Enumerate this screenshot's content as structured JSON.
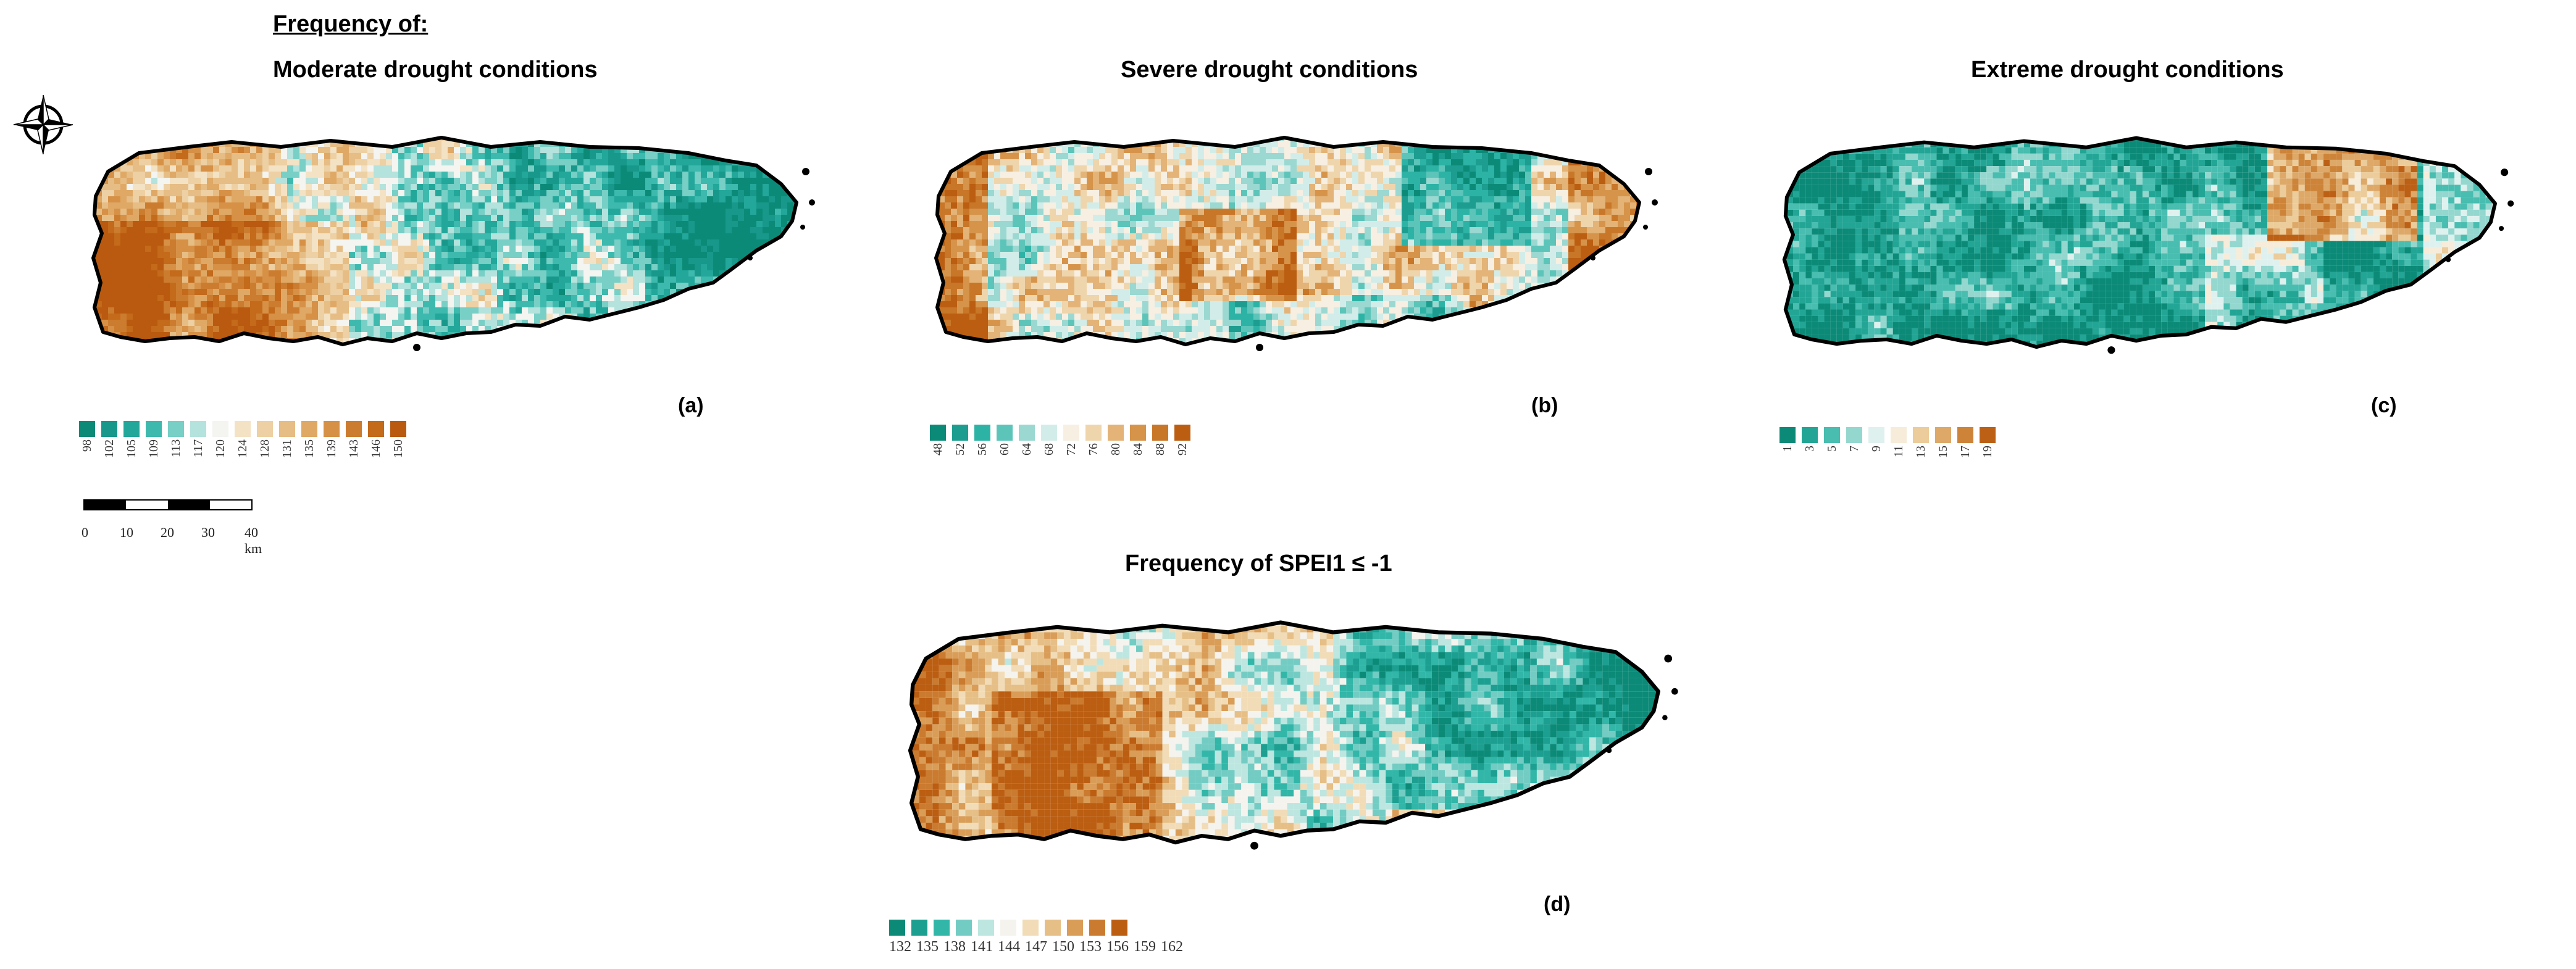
{
  "header": {
    "title": "Frequency of",
    "colon": ":"
  },
  "panels": [
    {
      "id": "a",
      "title": "Moderate drought conditions",
      "label": "(a)",
      "legend_ticks": [
        "98",
        "102",
        "105",
        "109",
        "113",
        "117",
        "120",
        "124",
        "128",
        "131",
        "135",
        "139",
        "143",
        "146",
        "150"
      ],
      "legend_colors": [
        "#0c8a78",
        "#17988a",
        "#22a79a",
        "#3db9ad",
        "#77cfc6",
        "#b4e2dc",
        "#f4f4f1",
        "#f3e2c4",
        "#edd0a3",
        "#e6bd84",
        "#dfa865",
        "#d69147",
        "#cc7c2f",
        "#c36a1b",
        "#b95a10"
      ]
    },
    {
      "id": "b",
      "title": "Severe drought conditions",
      "label": "(b)",
      "legend_ticks": [
        "48",
        "52",
        "56",
        "60",
        "64",
        "68",
        "72",
        "76",
        "80",
        "84",
        "88",
        "92"
      ],
      "legend_colors": [
        "#0c8a78",
        "#1c9d8f",
        "#2db3a5",
        "#5cc4b9",
        "#9ad8d1",
        "#d2ede9",
        "#f6efe2",
        "#efd5ac",
        "#e3b377",
        "#d6944b",
        "#c87628",
        "#bb5e12"
      ]
    },
    {
      "id": "c",
      "title": "Extreme drought conditions",
      "label": "(c)",
      "legend_ticks": [
        "1",
        "3",
        "5",
        "7",
        "9",
        "11",
        "13",
        "15",
        "17",
        "19"
      ],
      "legend_colors": [
        "#0c8a78",
        "#22a595",
        "#48bdb0",
        "#93d7cf",
        "#dff1ee",
        "#f6ecd9",
        "#ebcc9a",
        "#dda868",
        "#cd8439",
        "#bc6015"
      ]
    },
    {
      "id": "d",
      "title": "Frequency of SPEI1 ≤ -1",
      "label": "(d)",
      "legend_ticks": [
        "132",
        "135",
        "138",
        "141",
        "144",
        "147",
        "150",
        "153",
        "156",
        "159",
        "162"
      ],
      "legend_colors": [
        "#0c8a78",
        "#1c9f90",
        "#31b6a8",
        "#73ccc3",
        "#bde6e0",
        "#f5f3ee",
        "#f1dcb7",
        "#e6bf87",
        "#d99d58",
        "#ca7b2f",
        "#bb5e12"
      ]
    }
  ],
  "scalebar": {
    "ticks": [
      "0",
      "10",
      "20",
      "30",
      "40 km"
    ]
  },
  "icons": {
    "compass": "compass-rose-icon"
  },
  "colors": {
    "wet": "#0c8a78",
    "dry": "#b95a10",
    "neutral": "#f4f4f1",
    "coast": "#000000"
  }
}
